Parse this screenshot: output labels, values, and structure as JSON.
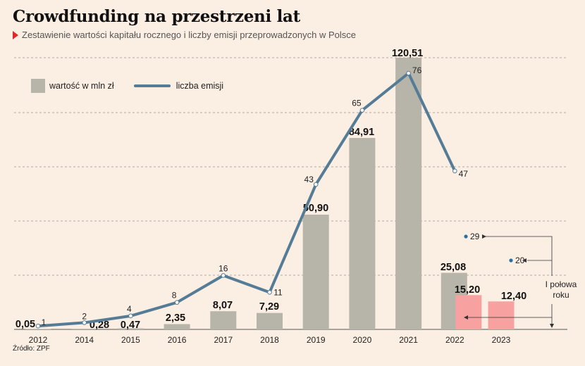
{
  "title": "Crowdfunding na przestrzeni lat",
  "subtitle": "Zestawienie wartości kapitału rocznego i liczby emisji przeprowadzonych w Polsce",
  "source": "Źródło: ZPF",
  "legend": {
    "bar": "wartość w mln zł",
    "line": "liczba emisji"
  },
  "annotation": "I połowa roku",
  "colors": {
    "background": "#fbeee3",
    "bar": "#b7b5aa",
    "bar_half": "#f7a1a1",
    "line": "#557c96",
    "grid": "#b0aaa3"
  },
  "chart_data": {
    "type": "bar",
    "title": "Crowdfunding na przestrzeni lat",
    "categories": [
      "2012",
      "2014",
      "2015",
      "2016",
      "2017",
      "2018",
      "2019",
      "2020",
      "2021",
      "2022",
      "2023"
    ],
    "series": [
      {
        "name": "wartość w mln zł",
        "type": "bar",
        "values": [
          0.05,
          0.28,
          0.47,
          2.35,
          8.07,
          7.29,
          50.9,
          84.91,
          120.51,
          25.08,
          null
        ],
        "labels": [
          "0,05",
          "0,28",
          "0,47",
          "2,35",
          "8,07",
          "7,29",
          "50,90",
          "84,91",
          "120,51",
          "25,08",
          ""
        ]
      },
      {
        "name": "I połowa roku (wartość w mln zł)",
        "type": "bar",
        "values": [
          null,
          null,
          null,
          null,
          null,
          null,
          null,
          null,
          null,
          15.2,
          12.4
        ],
        "labels": [
          "",
          "",
          "",
          "",
          "",
          "",
          "",
          "",
          "",
          "15,20",
          "12,40"
        ]
      },
      {
        "name": "liczba emisji",
        "type": "line",
        "values": [
          1,
          2,
          4,
          8,
          16,
          11,
          43,
          65,
          76,
          47,
          null
        ],
        "labels": [
          "1",
          "2",
          "4",
          "8",
          "16",
          "11",
          "43",
          "65",
          "76",
          "47",
          ""
        ]
      },
      {
        "name": "I połowa roku (liczba emisji)",
        "type": "scatter",
        "values": [
          null,
          null,
          null,
          null,
          null,
          null,
          null,
          null,
          null,
          29,
          20
        ],
        "labels": [
          "",
          "",
          "",
          "",
          "",
          "",
          "",
          "",
          "",
          "29",
          "20"
        ]
      }
    ],
    "bar_ylim": [
      0,
      125
    ],
    "line_ylim": [
      0,
      80
    ],
    "grid": true,
    "legend_position": "top-left"
  }
}
